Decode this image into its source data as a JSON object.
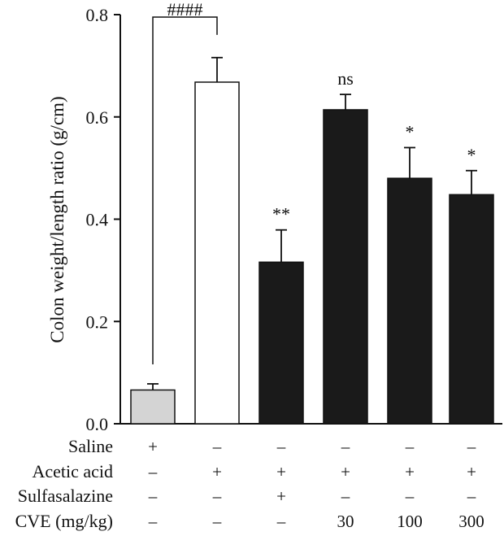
{
  "chart_data": {
    "type": "bar",
    "title": "",
    "ylabel": "Colon weight/length ratio (g/cm)",
    "xlabel": "",
    "ylim": [
      0,
      0.8
    ],
    "yticks": [
      "0.0",
      "0.2",
      "0.4",
      "0.6",
      "0.8"
    ],
    "ytick_values": [
      0,
      0.2,
      0.4,
      0.6,
      0.8
    ],
    "grid": false,
    "bars": [
      {
        "value": 0.066,
        "error": 0.012,
        "fill": "#d4d4d4",
        "annotation": ""
      },
      {
        "value": 0.668,
        "error": 0.048,
        "fill": "#ffffff",
        "annotation": ""
      },
      {
        "value": 0.316,
        "error": 0.063,
        "fill": "#1a1a1a",
        "annotation": "**"
      },
      {
        "value": 0.614,
        "error": 0.03,
        "fill": "#1a1a1a",
        "annotation": "ns"
      },
      {
        "value": 0.48,
        "error": 0.06,
        "fill": "#1a1a1a",
        "annotation": "*"
      },
      {
        "value": 0.448,
        "error": 0.047,
        "fill": "#1a1a1a",
        "annotation": "*"
      }
    ],
    "bracket": {
      "from_bar": 0,
      "to_bar": 1,
      "label": "####"
    },
    "treatment_table": [
      {
        "label": "Saline",
        "cells": [
          "+",
          "–",
          "–",
          "–",
          "–",
          "–"
        ]
      },
      {
        "label": "Acetic acid",
        "cells": [
          "–",
          "+",
          "+",
          "+",
          "+",
          "+"
        ]
      },
      {
        "label": "Sulfasalazine",
        "cells": [
          "–",
          "–",
          "+",
          "–",
          "–",
          "–"
        ]
      },
      {
        "label": "CVE (mg/kg)",
        "cells": [
          "–",
          "–",
          "–",
          "30",
          "100",
          "300"
        ]
      }
    ]
  }
}
